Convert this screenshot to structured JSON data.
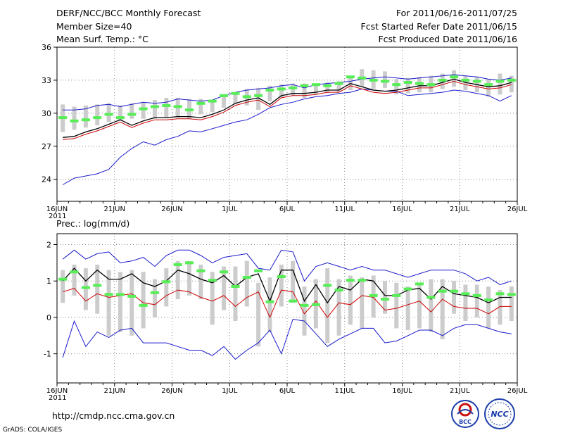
{
  "header": {
    "title": "DERF/NCC/BCC Monthly Forecast",
    "member_size": "Member Size=40",
    "variable_1": "Mean Surf. Temp.: °C",
    "period": "For 2011/06/16-2011/07/25",
    "refer_date": "Fcst Started Refer Date 2011/06/15",
    "produced_date": "Fcst Produced Date 2011/06/16"
  },
  "footer": {
    "url": "http://cmdp.ncc.cma.gov.cn",
    "credit": "GrADS: COLA/IGES",
    "logo_bcc_text": "BCC",
    "logo_ncc_text": "NCC"
  },
  "colors": {
    "max_line": "#1a1acc",
    "min_line": "#1a1acc",
    "mean_line": "#000000",
    "median_line": "#cc0000",
    "box": "#cccccc",
    "marker": "#55ee55",
    "grid": "#888888"
  },
  "chart_data": [
    {
      "type": "line",
      "title": "Mean Surf. Temp.: °C",
      "x_tick_labels": [
        "16JUN",
        "21JUN",
        "26JUN",
        "1JUL",
        "6JUL",
        "11JUL",
        "16JUL",
        "21JUL",
        "26JUL"
      ],
      "x_year_label": "2011",
      "x_range_days": [
        0,
        40
      ],
      "ylim": [
        22,
        36
      ],
      "y_ticks": [
        24,
        27,
        30,
        33,
        36
      ],
      "grid": true,
      "series": [
        {
          "name": "max",
          "values": [
            30.3,
            30.3,
            30.4,
            30.7,
            30.8,
            30.6,
            30.8,
            31.0,
            30.9,
            31.0,
            31.3,
            31.2,
            31.1,
            31.2,
            31.6,
            31.9,
            32.1,
            32.2,
            32.3,
            32.5,
            32.6,
            32.3,
            32.6,
            32.7,
            32.8,
            32.9,
            33.1,
            33.2,
            33.3,
            33.2,
            33.1,
            33.2,
            33.3,
            33.4,
            33.5,
            33.4,
            33.3,
            33.1,
            33.0,
            33.2
          ]
        },
        {
          "name": "box_high",
          "values": [
            30.8,
            30.6,
            30.7,
            30.8,
            30.9,
            30.7,
            30.9,
            31.0,
            31.2,
            31.4,
            31.4,
            31.3,
            31.3,
            31.1,
            31.6,
            31.9,
            32.2,
            32.3,
            32.5,
            32.6,
            32.7,
            32.7,
            32.7,
            32.8,
            32.9,
            33.2,
            34.0,
            33.9,
            33.8,
            33.1,
            33.2,
            33.3,
            33.4,
            33.6,
            33.9,
            33.4,
            33.3,
            33.1,
            33.6,
            33.4
          ]
        },
        {
          "name": "box_low",
          "values": [
            28.3,
            28.5,
            28.7,
            28.9,
            29.2,
            29.3,
            29.5,
            29.5,
            29.5,
            29.6,
            29.6,
            29.5,
            29.9,
            30.1,
            30.5,
            30.8,
            30.7,
            30.3,
            31.1,
            31.4,
            31.6,
            31.4,
            31.7,
            31.8,
            31.9,
            32.1,
            32.4,
            32.2,
            32.3,
            31.7,
            31.8,
            31.9,
            31.9,
            32.2,
            32.4,
            32.1,
            31.9,
            31.5,
            31.7,
            31.9
          ]
        },
        {
          "name": "markers",
          "values": [
            29.6,
            29.3,
            29.4,
            29.6,
            29.9,
            29.6,
            29.9,
            30.4,
            30.6,
            30.7,
            30.6,
            30.3,
            30.9,
            31.1,
            31.6,
            31.8,
            31.5,
            31.6,
            32.1,
            32.2,
            32.3,
            32.5,
            32.6,
            32.5,
            32.7,
            33.3,
            33.2,
            33.0,
            32.9,
            32.6,
            32.8,
            32.7,
            32.6,
            33.0,
            33.3,
            33.0,
            32.9,
            32.6,
            32.9,
            33.0
          ]
        },
        {
          "name": "mean",
          "values": [
            27.8,
            27.9,
            28.3,
            28.6,
            29.0,
            29.4,
            28.9,
            29.3,
            29.6,
            29.6,
            29.7,
            29.7,
            29.6,
            29.9,
            30.3,
            30.9,
            31.2,
            31.4,
            30.8,
            31.6,
            31.8,
            31.8,
            31.9,
            32.1,
            32.1,
            32.7,
            32.4,
            32.1,
            32.0,
            32.1,
            32.3,
            32.5,
            32.5,
            32.8,
            33.1,
            32.8,
            32.6,
            32.4,
            32.5,
            32.8
          ]
        },
        {
          "name": "median",
          "values": [
            27.6,
            27.7,
            28.1,
            28.4,
            28.8,
            29.2,
            28.7,
            29.1,
            29.4,
            29.4,
            29.5,
            29.5,
            29.4,
            29.7,
            30.1,
            30.7,
            31.0,
            31.2,
            30.6,
            31.4,
            31.6,
            31.6,
            31.7,
            31.9,
            31.9,
            32.5,
            32.2,
            31.9,
            31.8,
            31.9,
            32.1,
            32.3,
            32.3,
            32.6,
            32.9,
            32.6,
            32.4,
            32.2,
            32.3,
            32.6
          ]
        },
        {
          "name": "min",
          "values": [
            23.5,
            24.1,
            24.3,
            24.5,
            24.9,
            26.0,
            26.8,
            27.4,
            27.1,
            27.6,
            27.9,
            28.4,
            28.3,
            28.6,
            28.9,
            29.2,
            29.4,
            29.9,
            30.5,
            30.8,
            31.0,
            31.3,
            31.5,
            31.6,
            31.8,
            31.9,
            32.2,
            32.1,
            32.0,
            32.0,
            31.6,
            31.7,
            31.8,
            31.9,
            32.1,
            32.0,
            31.8,
            31.6,
            31.1,
            31.6
          ]
        }
      ]
    },
    {
      "type": "line",
      "title": "Prec.: log(mm/d)",
      "x_tick_labels": [
        "16JUN",
        "21JUN",
        "26JUN",
        "1JUL",
        "6JUL",
        "11JUL",
        "16JUL",
        "21JUL",
        "26JUL"
      ],
      "x_year_label": "2011",
      "x_range_days": [
        0,
        40
      ],
      "ylim": [
        -1.8,
        2.3
      ],
      "y_ticks": [
        -1,
        0,
        1,
        2
      ],
      "grid": true,
      "series": [
        {
          "name": "max",
          "values": [
            1.6,
            1.85,
            1.6,
            1.75,
            1.8,
            1.5,
            1.55,
            1.65,
            1.4,
            1.7,
            1.85,
            1.85,
            1.7,
            1.5,
            1.65,
            1.7,
            1.75,
            1.35,
            1.3,
            1.85,
            1.8,
            1.0,
            1.4,
            1.5,
            1.4,
            1.3,
            1.4,
            1.3,
            1.3,
            1.2,
            1.1,
            1.2,
            1.3,
            1.3,
            1.3,
            1.2,
            1.0,
            1.1,
            0.9,
            1.0
          ]
        },
        {
          "name": "box_high",
          "values": [
            1.3,
            1.45,
            1.35,
            1.45,
            1.3,
            1.25,
            1.3,
            1.25,
            1.05,
            1.35,
            1.55,
            1.55,
            1.45,
            1.25,
            1.4,
            1.4,
            1.55,
            0.95,
            1.1,
            1.45,
            1.55,
            0.85,
            1.05,
            1.35,
            1.05,
            1.15,
            1.1,
            1.15,
            1.0,
            0.95,
            0.85,
            0.95,
            1.05,
            1.05,
            1.0,
            0.9,
            0.9,
            0.85,
            0.75,
            0.85
          ]
        },
        {
          "name": "box_low",
          "values": [
            0.4,
            0.6,
            0.2,
            0.1,
            -0.5,
            -0.4,
            -0.5,
            -0.3,
            0.0,
            0.3,
            0.5,
            0.6,
            0.5,
            -0.2,
            0.2,
            -0.1,
            0.3,
            -0.8,
            -0.4,
            0.3,
            0.4,
            -0.5,
            -0.3,
            -0.7,
            -0.5,
            -0.2,
            -0.3,
            0.0,
            0.1,
            -0.3,
            -0.35,
            -0.3,
            -0.4,
            -0.6,
            0.1,
            -0.1,
            0.0,
            -0.3,
            -0.2,
            -0.1
          ]
        },
        {
          "name": "markers",
          "values": [
            1.05,
            1.25,
            0.82,
            0.88,
            0.63,
            0.63,
            0.58,
            0.33,
            0.68,
            0.98,
            1.45,
            1.5,
            1.28,
            1.02,
            1.25,
            0.85,
            1.1,
            1.28,
            0.43,
            1.12,
            0.45,
            0.33,
            0.35,
            0.88,
            0.75,
            1.02,
            1.02,
            0.6,
            0.5,
            0.6,
            0.78,
            0.92,
            0.55,
            0.72,
            0.72,
            0.65,
            0.6,
            0.48,
            0.65,
            0.63
          ]
        },
        {
          "name": "mean",
          "values": [
            1.0,
            1.35,
            1.0,
            1.3,
            1.05,
            1.05,
            1.2,
            0.95,
            0.85,
            1.0,
            1.3,
            1.2,
            1.05,
            0.95,
            1.15,
            0.85,
            1.1,
            1.2,
            0.45,
            1.3,
            1.3,
            0.45,
            0.9,
            0.4,
            0.85,
            0.75,
            1.05,
            1.0,
            0.6,
            0.6,
            0.75,
            0.8,
            0.5,
            0.85,
            0.65,
            0.6,
            0.55,
            0.4,
            0.55,
            0.55
          ]
        },
        {
          "name": "median",
          "values": [
            0.7,
            0.8,
            0.45,
            0.65,
            0.55,
            0.6,
            0.65,
            0.4,
            0.35,
            0.6,
            0.75,
            0.7,
            0.55,
            0.45,
            0.6,
            0.3,
            0.55,
            0.7,
            0.0,
            0.75,
            0.7,
            0.1,
            0.45,
            0.0,
            0.4,
            0.35,
            0.6,
            0.55,
            0.2,
            0.25,
            0.35,
            0.45,
            0.15,
            0.5,
            0.3,
            0.25,
            0.25,
            0.1,
            0.3,
            0.3
          ]
        },
        {
          "name": "min",
          "values": [
            -1.1,
            -0.1,
            -0.8,
            -0.4,
            -0.55,
            -0.35,
            -0.3,
            -0.7,
            -0.7,
            -0.7,
            -0.8,
            -0.9,
            -0.9,
            -1.05,
            -0.8,
            -1.15,
            -0.9,
            -0.7,
            -0.35,
            -1.0,
            -0.05,
            -0.1,
            -0.45,
            -0.8,
            -0.6,
            -0.45,
            -0.3,
            -0.3,
            -0.7,
            -0.65,
            -0.5,
            -0.35,
            -0.35,
            -0.5,
            -0.3,
            -0.2,
            -0.2,
            -0.3,
            -0.4,
            -0.45
          ]
        }
      ]
    }
  ]
}
